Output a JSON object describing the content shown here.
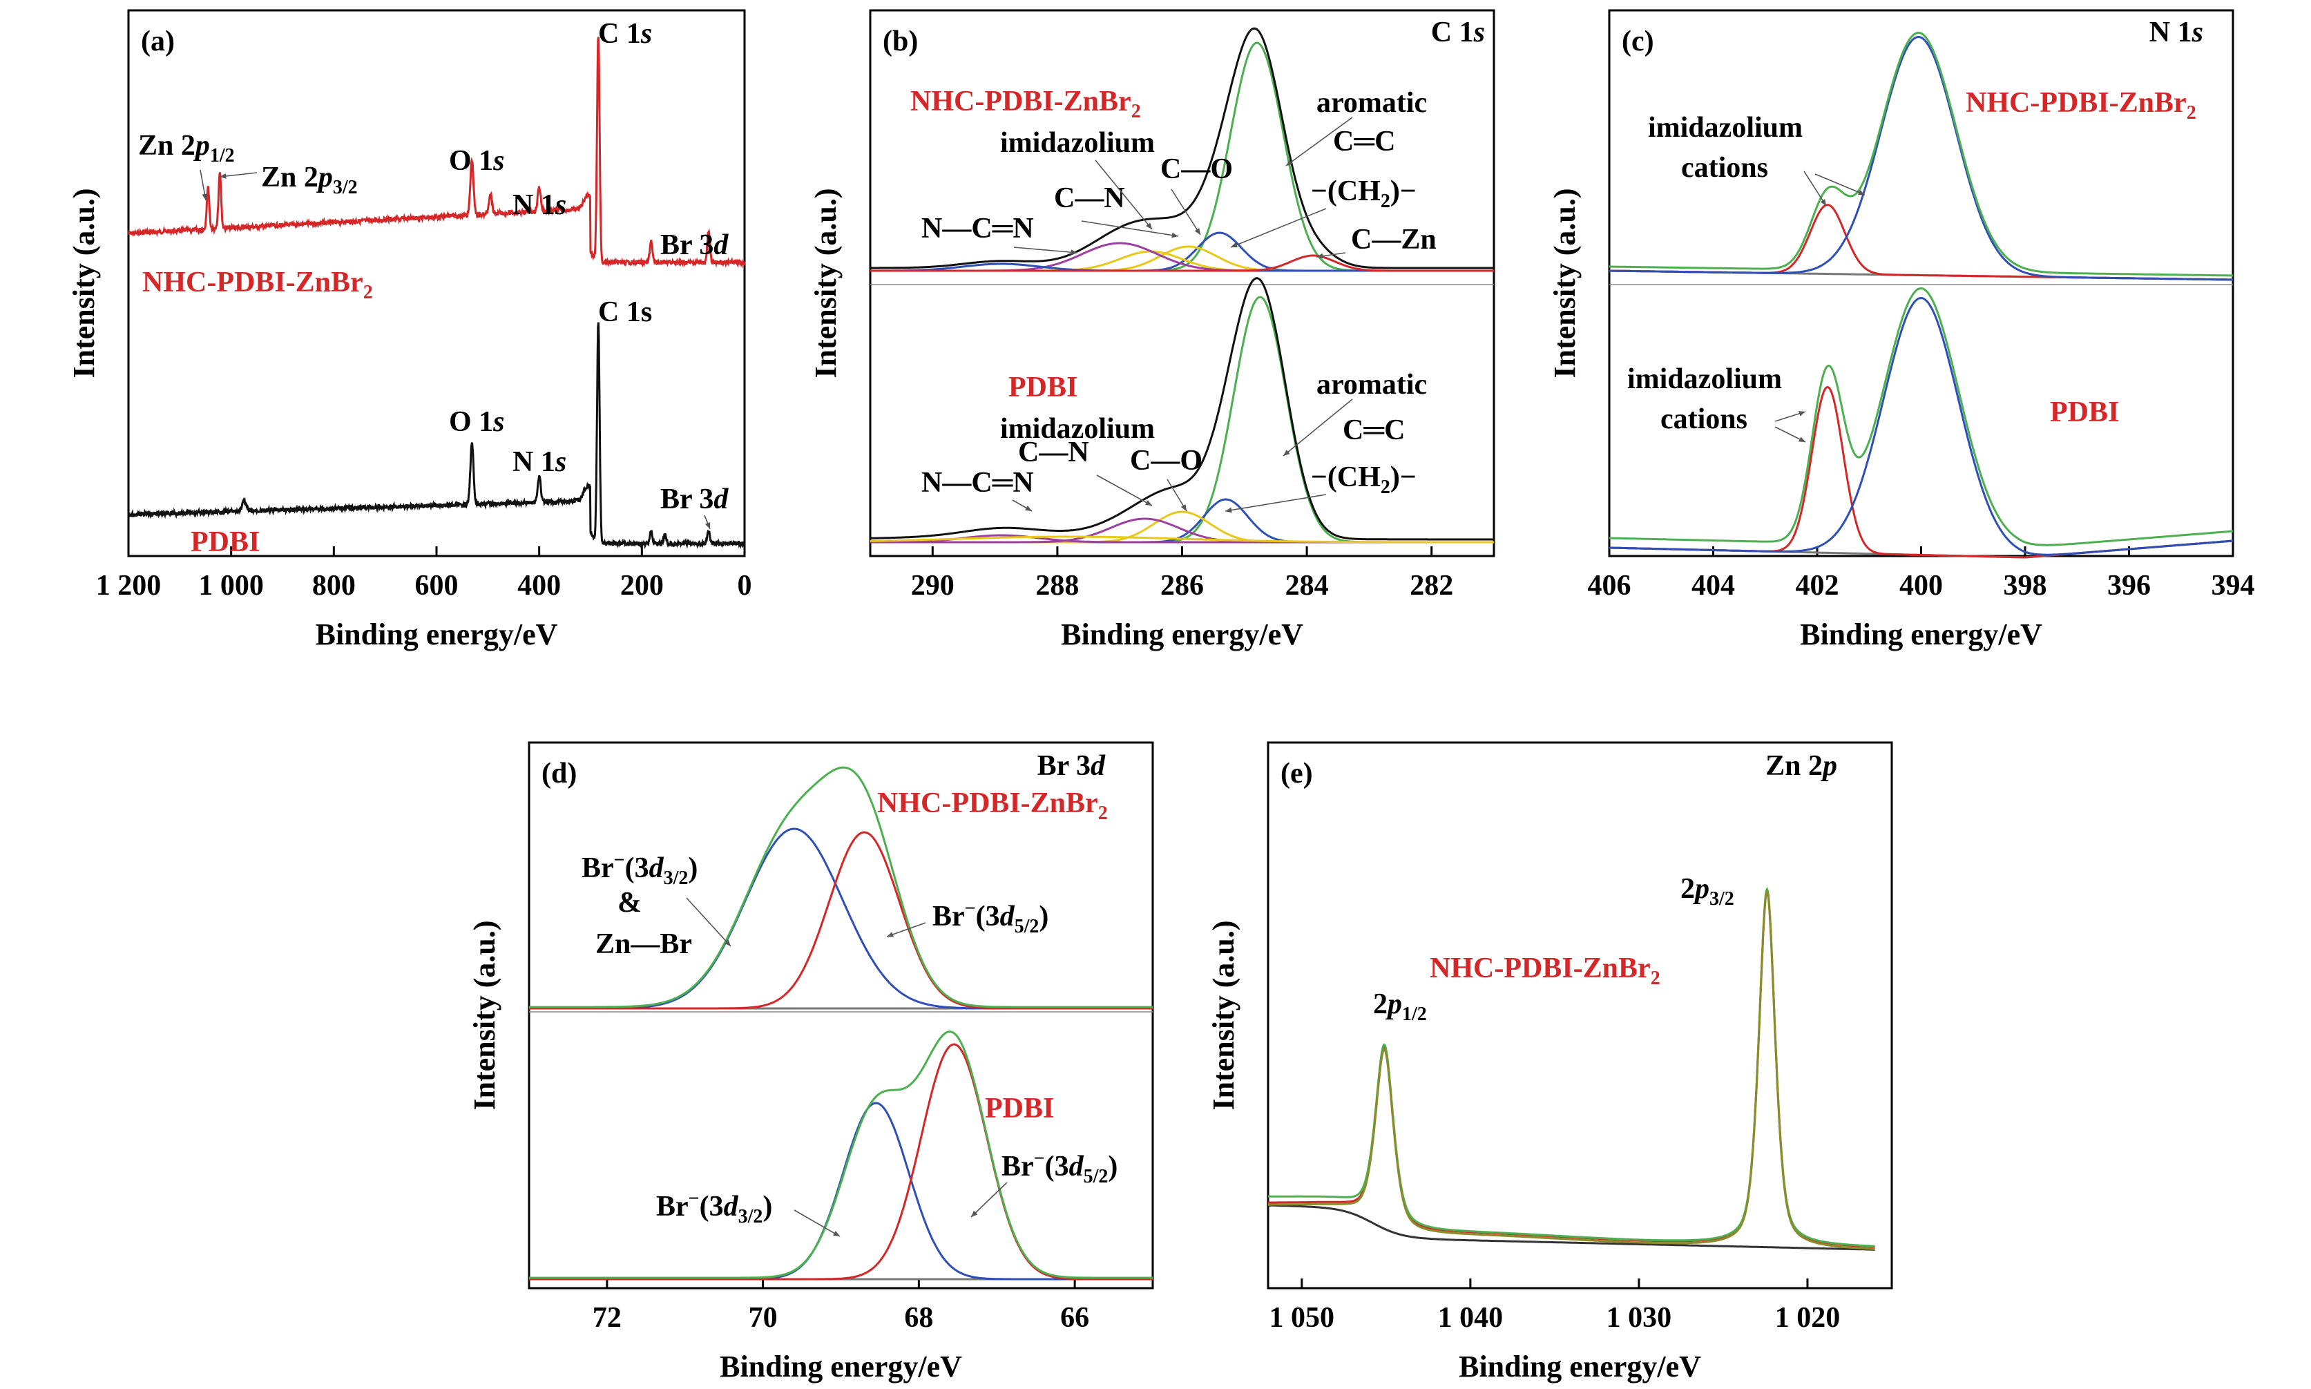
{
  "colors": {
    "black": "#111111",
    "red": "#d62728",
    "green": "#4caf50",
    "blue": "#2f4fb8",
    "yellow": "#e8c81a",
    "purple": "#9b3fa0",
    "gray": "#777777"
  },
  "panels": [
    {
      "id": "a",
      "tag": "(a)",
      "title": "",
      "xlabel": "Binding energy/eV",
      "ylabel": "Intensity (a.u.)",
      "xlim": [
        1200,
        0
      ],
      "xticks": [
        "1 200",
        "1 000",
        "800",
        "600",
        "400",
        "200",
        "0"
      ],
      "xtick_values": [
        1200,
        1000,
        800,
        600,
        400,
        200,
        0
      ],
      "annotations": [
        {
          "key": "c1s_top",
          "text": "C 1",
          "ital": "s",
          "sub": ""
        },
        {
          "key": "zn2p12",
          "text": "Zn 2",
          "ital": "p",
          "sub": "1/2"
        },
        {
          "key": "zn2p32",
          "text": "Zn 2",
          "ital": "p",
          "sub": "3/2"
        },
        {
          "key": "o1s_top",
          "text": "O 1",
          "ital": "s",
          "sub": ""
        },
        {
          "key": "n1s_top",
          "text": "N 1",
          "ital": "s",
          "sub": ""
        },
        {
          "key": "br3d_top",
          "text": "Br 3",
          "ital": "d",
          "sub": ""
        },
        {
          "key": "c1s_bot",
          "text": "C 1s",
          "ital": "",
          "sub": ""
        },
        {
          "key": "o1s_bot",
          "text": "O 1",
          "ital": "s",
          "sub": ""
        },
        {
          "key": "n1s_bot",
          "text": "N 1",
          "ital": "s",
          "sub": ""
        },
        {
          "key": "br3d_bot",
          "text": "Br 3",
          "ital": "d",
          "sub": ""
        }
      ],
      "series": [
        {
          "name": "NHC-PDBI-ZnBr",
          "name_sub": "2",
          "color": "red"
        },
        {
          "name": "PDBI",
          "name_sub": "",
          "color": "black"
        }
      ]
    },
    {
      "id": "b",
      "tag": "(b)",
      "title": "C 1",
      "title_ital": "s",
      "xlabel": "Binding energy/eV",
      "ylabel": "Intensity (a.u.)",
      "xlim": [
        291,
        281
      ],
      "xticks": [
        "290",
        "288",
        "286",
        "284",
        "282"
      ],
      "xtick_values": [
        290,
        288,
        286,
        284,
        282
      ],
      "top_sample": {
        "name": "NHC-PDBI-ZnBr",
        "sub": "2"
      },
      "bottom_sample": {
        "name": "PDBI",
        "sub": ""
      },
      "top_labels": [
        "aromatic",
        "C═C",
        "imidazolium",
        "C—O",
        "C—N",
        "N—C═N",
        "−(CH",
        "₂)−",
        "C—Zn"
      ],
      "bottom_labels": [
        "aromatic",
        "C═C",
        "imidazolium",
        "C—N",
        "C—O",
        "N—C═N",
        "−(CH",
        "₂)−"
      ]
    },
    {
      "id": "c",
      "tag": "(c)",
      "title": "N 1",
      "title_ital": "s",
      "xlabel": "Binding energy/eV",
      "ylabel": "Intensity (a.u.)",
      "xlim": [
        406,
        394
      ],
      "xticks": [
        "406",
        "404",
        "402",
        "400",
        "398",
        "396",
        "394"
      ],
      "xtick_values": [
        406,
        404,
        402,
        400,
        398,
        396,
        394
      ],
      "top_sample": {
        "name": "NHC-PDBI-ZnBr",
        "sub": "2"
      },
      "bottom_sample": {
        "name": "PDBI",
        "sub": ""
      },
      "labels": [
        "imidazolium",
        "cations",
        "imidazolium",
        "cations"
      ]
    },
    {
      "id": "d",
      "tag": "(d)",
      "title": "Br 3",
      "title_ital": "d",
      "xlabel": "Binding energy/eV",
      "ylabel": "Intensity (a.u.)",
      "xlim": [
        73,
        65
      ],
      "xticks": [
        "72",
        "70",
        "68",
        "66"
      ],
      "xtick_values": [
        72,
        70,
        68,
        66
      ],
      "top_sample": {
        "name": "NHC-PDBI-ZnBr",
        "sub": "2"
      },
      "bottom_sample": {
        "name": "PDBI",
        "sub": ""
      },
      "labels": {
        "br32": "Br",
        "br_paren": "(3",
        "br_d": "d",
        "br_sub32": "3/2",
        "br_sub52": "5/2",
        "amp": "&",
        "znbr": "Zn—Br"
      }
    },
    {
      "id": "e",
      "tag": "(e)",
      "title": "Zn 2",
      "title_ital": "p",
      "xlabel": "Binding energy/eV",
      "ylabel": "Intensity (a.u.)",
      "xlim": [
        1052,
        1015
      ],
      "xticks": [
        "1 050",
        "1 040",
        "1 030",
        "1 020"
      ],
      "xtick_values": [
        1050,
        1040,
        1030,
        1020
      ],
      "sample": {
        "name": "NHC-PDBI-ZnBr",
        "sub": "2"
      },
      "labels": {
        "p12": "1/2",
        "p32": "3/2",
        "two": "2",
        "p": "p"
      }
    }
  ],
  "chart_data": [
    {
      "panel": "a",
      "type": "line",
      "xlim": [
        1200,
        0
      ],
      "series": [
        {
          "name": "NHC-PDBI-ZnBr2",
          "peaks_eV": [
            1045,
            1022,
            531,
            400,
            284.8,
            70
          ],
          "background_trend": "rising toward low BE until ~300 eV"
        },
        {
          "name": "PDBI",
          "peaks_eV": [
            975,
            531,
            400,
            284.8,
            70
          ]
        }
      ]
    },
    {
      "panel": "b",
      "type": "line",
      "xlim": [
        291,
        281
      ],
      "series": [
        {
          "name": "NHC-PDBI-ZnBr2 C 1s components",
          "centers_eV": {
            "aromatic C=C": 284.8,
            "-(CH2)-": 285.4,
            "C-N": 285.9,
            "C-O": 286.5,
            "N-C=N": 288.9,
            "C-Zn": 283.9
          }
        },
        {
          "name": "PDBI C 1s components",
          "centers_eV": {
            "aromatic C=C": 284.8,
            "-(CH2)-": 285.3,
            "C-O": 286.0,
            "C-N": 286.6,
            "N-C=N": 288.9
          }
        }
      ]
    },
    {
      "panel": "c",
      "type": "line",
      "xlim": [
        406,
        394
      ],
      "series": [
        {
          "name": "NHC-PDBI-ZnBr2 N 1s",
          "centers_eV": {
            "imidazolium cations": 401.8,
            "main": 400.0
          }
        },
        {
          "name": "PDBI N 1s",
          "centers_eV": {
            "imidazolium cations": 401.8,
            "main": 400.0
          }
        }
      ]
    },
    {
      "panel": "d",
      "type": "line",
      "xlim": [
        73,
        65
      ],
      "series": [
        {
          "name": "NHC-PDBI-ZnBr2 Br 3d",
          "centers_eV": {
            "Br-(3d3/2) & Zn-Br": 69.6,
            "Br-(3d5/2)": 68.7
          }
        },
        {
          "name": "PDBI Br 3d",
          "centers_eV": {
            "Br-(3d3/2)": 68.6,
            "Br-(3d5/2)": 67.5
          }
        }
      ]
    },
    {
      "panel": "e",
      "type": "line",
      "xlim": [
        1052,
        1015
      ],
      "series": [
        {
          "name": "NHC-PDBI-ZnBr2 Zn 2p",
          "centers_eV": {
            "2p1/2": 1045.1,
            "2p3/2": 1022.4
          }
        }
      ]
    }
  ]
}
